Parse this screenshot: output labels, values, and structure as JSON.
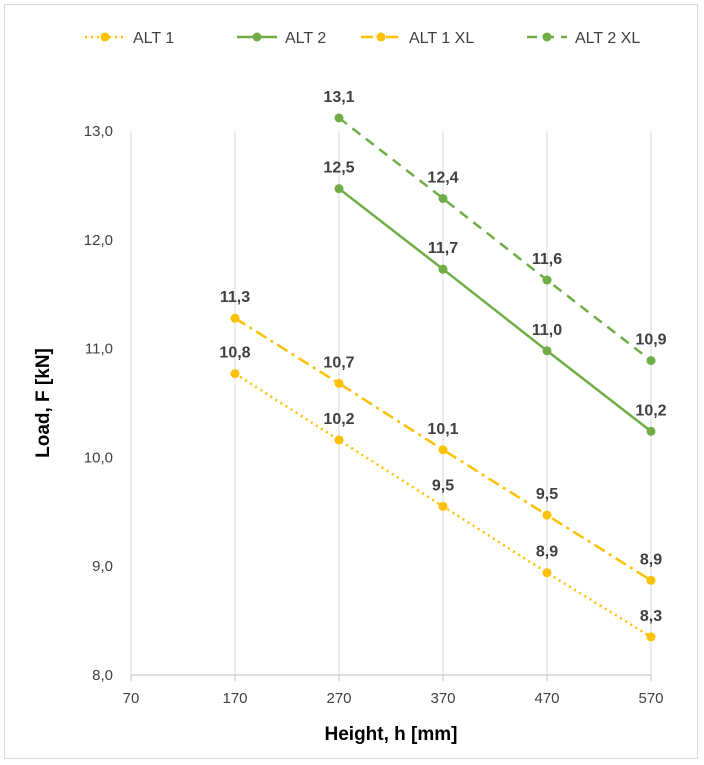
{
  "chart_data": {
    "type": "line",
    "title": "",
    "xlabel": "Height, h [mm]",
    "ylabel": "Load, F [kN]",
    "xlim": [
      70,
      570
    ],
    "ylim": [
      8.0,
      13.0
    ],
    "x_ticks": [
      70,
      170,
      270,
      370,
      470,
      570
    ],
    "y_ticks": [
      "8,0",
      "9,0",
      "10,0",
      "11,0",
      "12,0",
      "13,0"
    ],
    "grid": "vertical",
    "legend_position": "top",
    "series": [
      {
        "name": "ALT 1",
        "color": "#FFC000",
        "line_style": "dotted",
        "x": [
          170,
          270,
          370,
          470,
          570
        ],
        "values": [
          10.77,
          10.16,
          9.55,
          8.94,
          8.35
        ],
        "labels": [
          "10,8",
          "10,2",
          "9,5",
          "8,9",
          "8,3"
        ]
      },
      {
        "name": "ALT 2",
        "color": "#70AD47",
        "line_style": "solid",
        "x": [
          270,
          370,
          470,
          570
        ],
        "values": [
          12.47,
          11.73,
          10.98,
          10.24
        ],
        "labels": [
          "12,5",
          "11,7",
          "11,0",
          "10,2"
        ]
      },
      {
        "name": "ALT 1 XL",
        "color": "#FFC000",
        "line_style": "dashdot",
        "x": [
          170,
          270,
          370,
          470,
          570
        ],
        "values": [
          11.28,
          10.68,
          10.07,
          9.47,
          8.87
        ],
        "labels": [
          "11,3",
          "10,7",
          "10,1",
          "9,5",
          "8,9"
        ]
      },
      {
        "name": "ALT 2 XL",
        "color": "#70AD47",
        "line_style": "dashed",
        "x": [
          270,
          370,
          470,
          570
        ],
        "values": [
          13.12,
          12.38,
          11.63,
          10.89
        ],
        "labels": [
          "13,1",
          "12,4",
          "11,6",
          "10,9"
        ]
      }
    ]
  }
}
